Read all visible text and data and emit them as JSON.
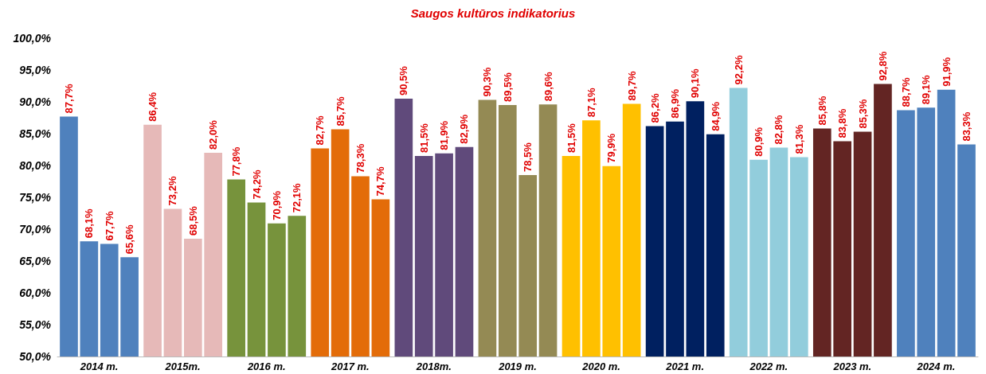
{
  "chart_data": {
    "type": "bar",
    "title": "Saugos kultūros indikatorius",
    "categories": [
      "2014 m.",
      "2015m.",
      "2016 m.",
      "2017 m.",
      "2018m.",
      "2019 m.",
      "2020 m.",
      "2021 m.",
      "2022 m.",
      "2023 m.",
      "2024 m."
    ],
    "series": [
      {
        "colors": [
          "#4f81bd",
          "#e6b9b8",
          "#77933c",
          "#e36c09",
          "#604a7b",
          "#948a54",
          "#ffc000",
          "#002060",
          "#92cddc",
          "#632523",
          "#4f81bd"
        ],
        "values": [
          87.7,
          86.4,
          77.8,
          82.7,
          90.5,
          90.3,
          81.5,
          86.2,
          92.2,
          85.8,
          88.7
        ],
        "value_labels": [
          "87,7%",
          "86,4%",
          "77,8%",
          "82,7%",
          "90,5%",
          "90,3%",
          "81,5%",
          "86,2%",
          "92,2%",
          "85,8%",
          "88,7%"
        ]
      },
      {
        "colors": [
          "#4f81bd",
          "#e6b9b8",
          "#77933c",
          "#e36c09",
          "#604a7b",
          "#948a54",
          "#ffc000",
          "#002060",
          "#92cddc",
          "#632523",
          "#4f81bd"
        ],
        "values": [
          68.1,
          73.2,
          74.2,
          85.7,
          81.5,
          89.5,
          87.1,
          86.9,
          80.9,
          83.8,
          89.1
        ],
        "value_labels": [
          "68,1%",
          "73,2%",
          "74,2%",
          "85,7%",
          "81,5%",
          "89,5%",
          "87,1%",
          "86,9%",
          "80,9%",
          "83,8%",
          "89,1%"
        ]
      },
      {
        "colors": [
          "#4f81bd",
          "#e6b9b8",
          "#77933c",
          "#e36c09",
          "#604a7b",
          "#948a54",
          "#ffc000",
          "#002060",
          "#92cddc",
          "#632523",
          "#4f81bd"
        ],
        "values": [
          67.7,
          68.5,
          70.9,
          78.3,
          81.9,
          78.5,
          79.9,
          90.1,
          82.8,
          85.3,
          91.9
        ],
        "value_labels": [
          "67,7%",
          "68,5%",
          "70,9%",
          "78,3%",
          "81,9%",
          "78,5%",
          "79,9%",
          "90,1%",
          "82,8%",
          "85,3%",
          "91,9%"
        ]
      },
      {
        "colors": [
          "#4f81bd",
          "#e6b9b8",
          "#77933c",
          "#e36c09",
          "#604a7b",
          "#948a54",
          "#ffc000",
          "#002060",
          "#92cddc",
          "#632523",
          "#4f81bd"
        ],
        "values": [
          65.6,
          82.0,
          72.1,
          74.7,
          82.9,
          89.6,
          89.7,
          84.9,
          81.3,
          92.8,
          83.3
        ],
        "value_labels": [
          "65,6%",
          "82,0%",
          "72,1%",
          "74,7%",
          "82,9%",
          "89,6%",
          "89,7%",
          "84,9%",
          "81,3%",
          "92,8%",
          "83,3%"
        ]
      }
    ],
    "ylim": [
      50,
      100
    ],
    "yticks": [
      {
        "value": 50,
        "label": "50,0%"
      },
      {
        "value": 55,
        "label": "55,0%"
      },
      {
        "value": 60,
        "label": "60,0%"
      },
      {
        "value": 65,
        "label": "65,0%"
      },
      {
        "value": 70,
        "label": "70,0%"
      },
      {
        "value": 75,
        "label": "75,0%"
      },
      {
        "value": 80,
        "label": "80,0%"
      },
      {
        "value": 85,
        "label": "85,0%"
      },
      {
        "value": 90,
        "label": "90,0%"
      },
      {
        "value": 95,
        "label": "95,0%"
      },
      {
        "value": 100,
        "label": "100,0%"
      }
    ],
    "grid": false
  }
}
